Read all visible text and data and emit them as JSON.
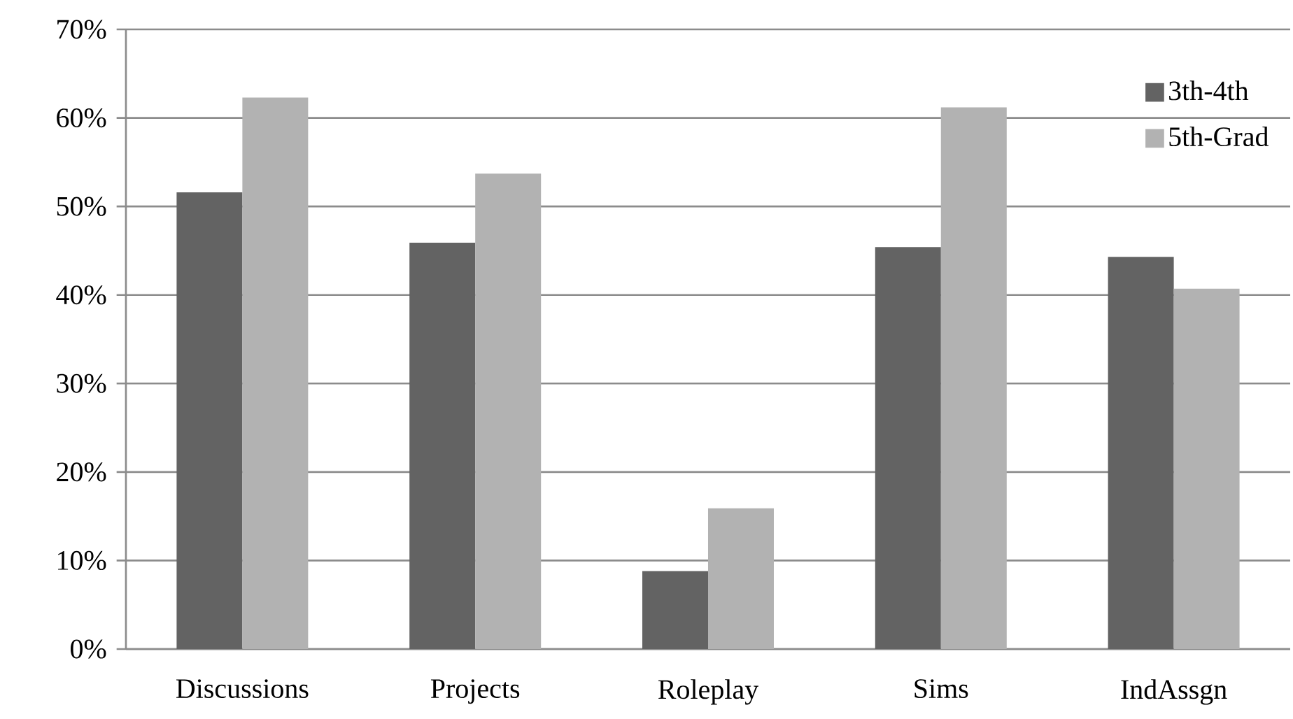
{
  "chart_data": {
    "type": "bar",
    "categories": [
      "Discussions",
      "Projects",
      "Roleplay",
      "Sims",
      "IndAssgn"
    ],
    "series": [
      {
        "name": "3th-4th",
        "color": "#636363",
        "values": [
          51.6,
          45.9,
          8.8,
          45.4,
          44.3
        ]
      },
      {
        "name": "5th-Grad",
        "color": "#b2b2b2",
        "values": [
          62.3,
          53.7,
          15.9,
          61.2,
          40.7
        ]
      }
    ],
    "ylim": [
      0,
      70
    ],
    "yticks": [
      {
        "value": 0,
        "label": "0%"
      },
      {
        "value": 10,
        "label": "10%"
      },
      {
        "value": 20,
        "label": "20%"
      },
      {
        "value": 30,
        "label": "30%"
      },
      {
        "value": 40,
        "label": "40%"
      },
      {
        "value": 50,
        "label": "50%"
      },
      {
        "value": 60,
        "label": "60%"
      },
      {
        "value": 70,
        "label": "70%"
      }
    ],
    "grid": "y",
    "legend": "top right"
  }
}
